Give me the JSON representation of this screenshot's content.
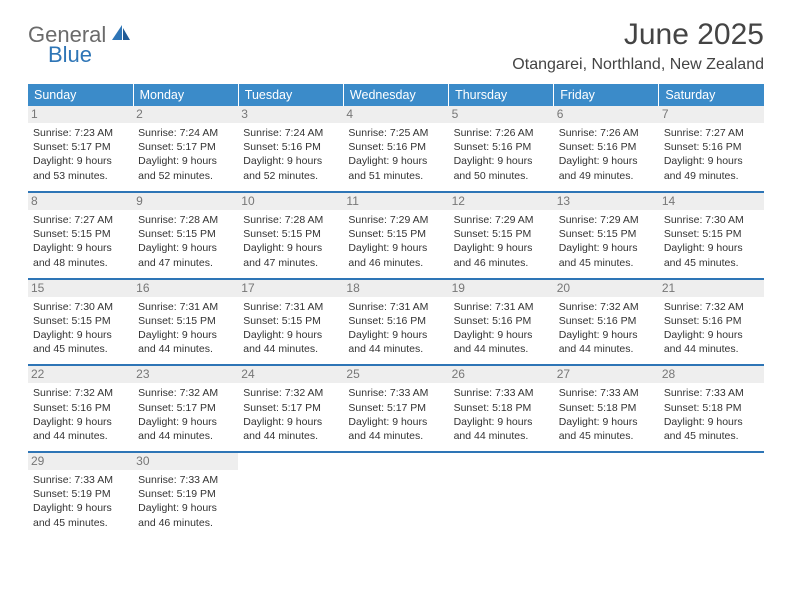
{
  "brand": {
    "word1": "General",
    "word2": "Blue"
  },
  "title": "June 2025",
  "location": "Otangarei, Northland, New Zealand",
  "colors": {
    "header_bg": "#3b8bc9",
    "rule": "#2e75b6",
    "daynum_bg": "#eeeeee",
    "text": "#333333",
    "muted": "#777777"
  },
  "weekdays": [
    "Sunday",
    "Monday",
    "Tuesday",
    "Wednesday",
    "Thursday",
    "Friday",
    "Saturday"
  ],
  "weeks": [
    [
      {
        "n": "1",
        "sr": "Sunrise: 7:23 AM",
        "ss": "Sunset: 5:17 PM",
        "d1": "Daylight: 9 hours",
        "d2": "and 53 minutes."
      },
      {
        "n": "2",
        "sr": "Sunrise: 7:24 AM",
        "ss": "Sunset: 5:17 PM",
        "d1": "Daylight: 9 hours",
        "d2": "and 52 minutes."
      },
      {
        "n": "3",
        "sr": "Sunrise: 7:24 AM",
        "ss": "Sunset: 5:16 PM",
        "d1": "Daylight: 9 hours",
        "d2": "and 52 minutes."
      },
      {
        "n": "4",
        "sr": "Sunrise: 7:25 AM",
        "ss": "Sunset: 5:16 PM",
        "d1": "Daylight: 9 hours",
        "d2": "and 51 minutes."
      },
      {
        "n": "5",
        "sr": "Sunrise: 7:26 AM",
        "ss": "Sunset: 5:16 PM",
        "d1": "Daylight: 9 hours",
        "d2": "and 50 minutes."
      },
      {
        "n": "6",
        "sr": "Sunrise: 7:26 AM",
        "ss": "Sunset: 5:16 PM",
        "d1": "Daylight: 9 hours",
        "d2": "and 49 minutes."
      },
      {
        "n": "7",
        "sr": "Sunrise: 7:27 AM",
        "ss": "Sunset: 5:16 PM",
        "d1": "Daylight: 9 hours",
        "d2": "and 49 minutes."
      }
    ],
    [
      {
        "n": "8",
        "sr": "Sunrise: 7:27 AM",
        "ss": "Sunset: 5:15 PM",
        "d1": "Daylight: 9 hours",
        "d2": "and 48 minutes."
      },
      {
        "n": "9",
        "sr": "Sunrise: 7:28 AM",
        "ss": "Sunset: 5:15 PM",
        "d1": "Daylight: 9 hours",
        "d2": "and 47 minutes."
      },
      {
        "n": "10",
        "sr": "Sunrise: 7:28 AM",
        "ss": "Sunset: 5:15 PM",
        "d1": "Daylight: 9 hours",
        "d2": "and 47 minutes."
      },
      {
        "n": "11",
        "sr": "Sunrise: 7:29 AM",
        "ss": "Sunset: 5:15 PM",
        "d1": "Daylight: 9 hours",
        "d2": "and 46 minutes."
      },
      {
        "n": "12",
        "sr": "Sunrise: 7:29 AM",
        "ss": "Sunset: 5:15 PM",
        "d1": "Daylight: 9 hours",
        "d2": "and 46 minutes."
      },
      {
        "n": "13",
        "sr": "Sunrise: 7:29 AM",
        "ss": "Sunset: 5:15 PM",
        "d1": "Daylight: 9 hours",
        "d2": "and 45 minutes."
      },
      {
        "n": "14",
        "sr": "Sunrise: 7:30 AM",
        "ss": "Sunset: 5:15 PM",
        "d1": "Daylight: 9 hours",
        "d2": "and 45 minutes."
      }
    ],
    [
      {
        "n": "15",
        "sr": "Sunrise: 7:30 AM",
        "ss": "Sunset: 5:15 PM",
        "d1": "Daylight: 9 hours",
        "d2": "and 45 minutes."
      },
      {
        "n": "16",
        "sr": "Sunrise: 7:31 AM",
        "ss": "Sunset: 5:15 PM",
        "d1": "Daylight: 9 hours",
        "d2": "and 44 minutes."
      },
      {
        "n": "17",
        "sr": "Sunrise: 7:31 AM",
        "ss": "Sunset: 5:15 PM",
        "d1": "Daylight: 9 hours",
        "d2": "and 44 minutes."
      },
      {
        "n": "18",
        "sr": "Sunrise: 7:31 AM",
        "ss": "Sunset: 5:16 PM",
        "d1": "Daylight: 9 hours",
        "d2": "and 44 minutes."
      },
      {
        "n": "19",
        "sr": "Sunrise: 7:31 AM",
        "ss": "Sunset: 5:16 PM",
        "d1": "Daylight: 9 hours",
        "d2": "and 44 minutes."
      },
      {
        "n": "20",
        "sr": "Sunrise: 7:32 AM",
        "ss": "Sunset: 5:16 PM",
        "d1": "Daylight: 9 hours",
        "d2": "and 44 minutes."
      },
      {
        "n": "21",
        "sr": "Sunrise: 7:32 AM",
        "ss": "Sunset: 5:16 PM",
        "d1": "Daylight: 9 hours",
        "d2": "and 44 minutes."
      }
    ],
    [
      {
        "n": "22",
        "sr": "Sunrise: 7:32 AM",
        "ss": "Sunset: 5:16 PM",
        "d1": "Daylight: 9 hours",
        "d2": "and 44 minutes."
      },
      {
        "n": "23",
        "sr": "Sunrise: 7:32 AM",
        "ss": "Sunset: 5:17 PM",
        "d1": "Daylight: 9 hours",
        "d2": "and 44 minutes."
      },
      {
        "n": "24",
        "sr": "Sunrise: 7:32 AM",
        "ss": "Sunset: 5:17 PM",
        "d1": "Daylight: 9 hours",
        "d2": "and 44 minutes."
      },
      {
        "n": "25",
        "sr": "Sunrise: 7:33 AM",
        "ss": "Sunset: 5:17 PM",
        "d1": "Daylight: 9 hours",
        "d2": "and 44 minutes."
      },
      {
        "n": "26",
        "sr": "Sunrise: 7:33 AM",
        "ss": "Sunset: 5:18 PM",
        "d1": "Daylight: 9 hours",
        "d2": "and 44 minutes."
      },
      {
        "n": "27",
        "sr": "Sunrise: 7:33 AM",
        "ss": "Sunset: 5:18 PM",
        "d1": "Daylight: 9 hours",
        "d2": "and 45 minutes."
      },
      {
        "n": "28",
        "sr": "Sunrise: 7:33 AM",
        "ss": "Sunset: 5:18 PM",
        "d1": "Daylight: 9 hours",
        "d2": "and 45 minutes."
      }
    ],
    [
      {
        "n": "29",
        "sr": "Sunrise: 7:33 AM",
        "ss": "Sunset: 5:19 PM",
        "d1": "Daylight: 9 hours",
        "d2": "and 45 minutes."
      },
      {
        "n": "30",
        "sr": "Sunrise: 7:33 AM",
        "ss": "Sunset: 5:19 PM",
        "d1": "Daylight: 9 hours",
        "d2": "and 46 minutes."
      },
      null,
      null,
      null,
      null,
      null
    ]
  ]
}
